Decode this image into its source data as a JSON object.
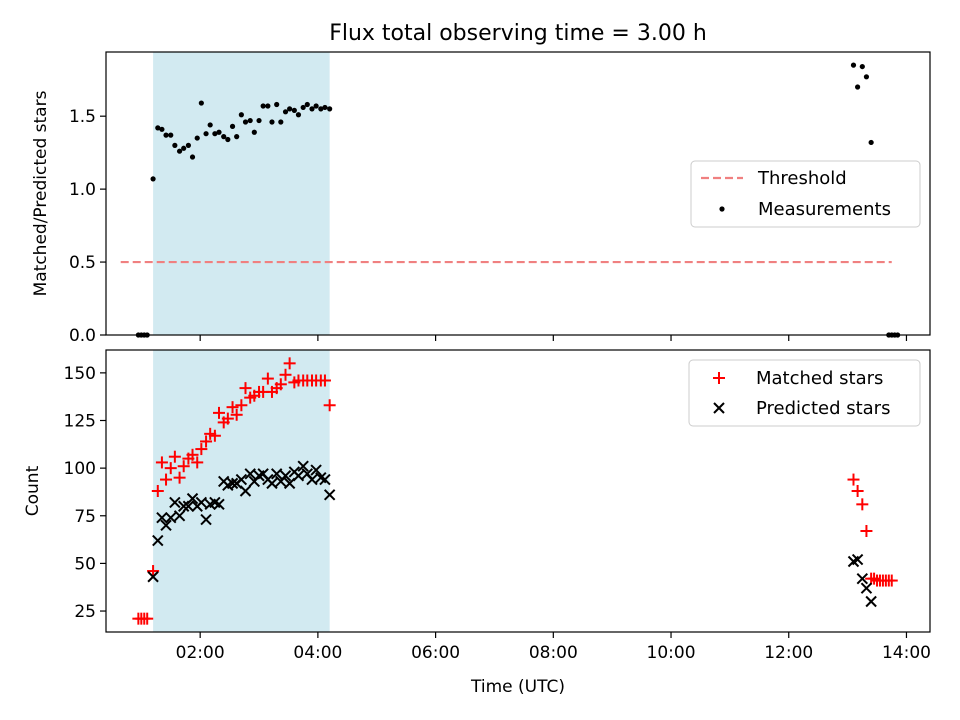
{
  "title": "Flux total observing time = 3.00 h",
  "colors": {
    "band": "#add8e6",
    "threshold": "#f08080",
    "measurements": "#000000",
    "matched": "#ff0000",
    "predicted": "#000000"
  },
  "chart_data": [
    {
      "type": "scatter",
      "ylabel": "Matched/Predicted stars",
      "xlim_hours": [
        0.4,
        14.4
      ],
      "ylim": [
        0,
        1.94
      ],
      "yticks": [
        0.0,
        0.5,
        1.0,
        1.5
      ],
      "ytick_labels": [
        "0.0",
        "0.5",
        "1.0",
        "1.5"
      ],
      "shaded_span_hours": [
        1.2,
        4.2
      ],
      "threshold": {
        "name": "Threshold",
        "value": 0.5,
        "x_range_hours": [
          0.65,
          13.75
        ]
      },
      "legend": {
        "placement": "right",
        "entries": [
          "Threshold",
          "Measurements"
        ]
      },
      "series": [
        {
          "name": "Measurements",
          "x": [
            0.95,
            1.0,
            1.05,
            1.1,
            1.2,
            1.28,
            1.35,
            1.42,
            1.5,
            1.57,
            1.65,
            1.72,
            1.8,
            1.87,
            1.95,
            2.02,
            2.1,
            2.17,
            2.25,
            2.32,
            2.4,
            2.47,
            2.55,
            2.62,
            2.7,
            2.77,
            2.85,
            2.92,
            3.0,
            3.07,
            3.15,
            3.22,
            3.3,
            3.37,
            3.45,
            3.52,
            3.6,
            3.67,
            3.75,
            3.82,
            3.9,
            3.97,
            4.05,
            4.12,
            4.2,
            13.1,
            13.17,
            13.25,
            13.32,
            13.4,
            13.7,
            13.75,
            13.8,
            13.85
          ],
          "y": [
            0,
            0,
            0,
            0,
            1.07,
            1.42,
            1.41,
            1.37,
            1.37,
            1.3,
            1.26,
            1.28,
            1.3,
            1.22,
            1.35,
            1.59,
            1.38,
            1.44,
            1.38,
            1.39,
            1.36,
            1.34,
            1.43,
            1.36,
            1.51,
            1.46,
            1.47,
            1.39,
            1.47,
            1.57,
            1.57,
            1.46,
            1.58,
            1.46,
            1.53,
            1.55,
            1.54,
            1.51,
            1.56,
            1.58,
            1.55,
            1.57,
            1.55,
            1.56,
            1.55,
            1.85,
            1.7,
            1.84,
            1.77,
            1.32,
            0,
            0,
            0,
            0
          ]
        }
      ]
    },
    {
      "type": "scatter",
      "xlabel": "Time (UTC)",
      "ylabel": "Count",
      "xlim_hours": [
        0.4,
        14.4
      ],
      "ylim": [
        14,
        162
      ],
      "yticks": [
        25,
        50,
        75,
        100,
        125,
        150
      ],
      "ytick_labels": [
        "25",
        "50",
        "75",
        "100",
        "125",
        "150"
      ],
      "xticks_hours": [
        2,
        4,
        6,
        8,
        10,
        12,
        14
      ],
      "xtick_labels": [
        "02:00",
        "04:00",
        "06:00",
        "08:00",
        "10:00",
        "12:00",
        "14:00"
      ],
      "shaded_span_hours": [
        1.2,
        4.2
      ],
      "legend": {
        "placement": "top-right",
        "entries": [
          "Matched stars",
          "Predicted stars"
        ]
      },
      "series": [
        {
          "name": "Matched stars",
          "marker": "+",
          "x": [
            0.95,
            1.0,
            1.05,
            1.1,
            1.2,
            1.28,
            1.35,
            1.42,
            1.5,
            1.57,
            1.65,
            1.72,
            1.8,
            1.87,
            1.95,
            2.02,
            2.1,
            2.17,
            2.25,
            2.32,
            2.4,
            2.47,
            2.55,
            2.62,
            2.7,
            2.77,
            2.85,
            2.92,
            3.0,
            3.07,
            3.15,
            3.22,
            3.3,
            3.37,
            3.45,
            3.52,
            3.6,
            3.67,
            3.75,
            3.82,
            3.9,
            3.97,
            4.05,
            4.12,
            4.2,
            13.1,
            13.17,
            13.25,
            13.32,
            13.4,
            13.45,
            13.5,
            13.55,
            13.6,
            13.65,
            13.7,
            13.75
          ],
          "y": [
            21,
            21,
            21,
            21,
            46,
            88,
            103,
            94,
            100,
            106,
            95,
            101,
            105,
            107,
            103,
            110,
            114,
            118,
            117,
            129,
            124,
            126,
            132,
            128,
            133,
            142,
            137,
            138,
            140,
            140,
            147,
            140,
            142,
            144,
            149,
            155,
            145,
            146,
            146,
            146,
            146,
            146,
            146,
            146,
            133,
            94,
            88,
            81,
            67,
            42,
            42,
            41,
            41,
            41,
            41,
            41,
            41
          ]
        },
        {
          "name": "Predicted stars",
          "marker": "x",
          "x": [
            1.2,
            1.28,
            1.35,
            1.42,
            1.5,
            1.57,
            1.65,
            1.72,
            1.8,
            1.87,
            1.95,
            2.02,
            2.1,
            2.17,
            2.25,
            2.32,
            2.4,
            2.47,
            2.55,
            2.62,
            2.7,
            2.77,
            2.85,
            2.92,
            3.0,
            3.07,
            3.15,
            3.22,
            3.3,
            3.37,
            3.45,
            3.52,
            3.6,
            3.67,
            3.75,
            3.82,
            3.9,
            3.97,
            4.05,
            4.12,
            4.2,
            13.1,
            13.17,
            13.25,
            13.32,
            13.4
          ],
          "y": [
            43,
            62,
            74,
            70,
            74,
            82,
            75,
            80,
            80,
            84,
            80,
            82,
            73,
            81,
            82,
            81,
            93,
            91,
            92,
            92,
            94,
            88,
            97,
            93,
            96,
            97,
            94,
            92,
            97,
            93,
            96,
            92,
            98,
            96,
            101,
            97,
            94,
            99,
            95,
            94,
            86,
            51,
            52,
            42,
            37,
            30
          ]
        }
      ]
    }
  ]
}
